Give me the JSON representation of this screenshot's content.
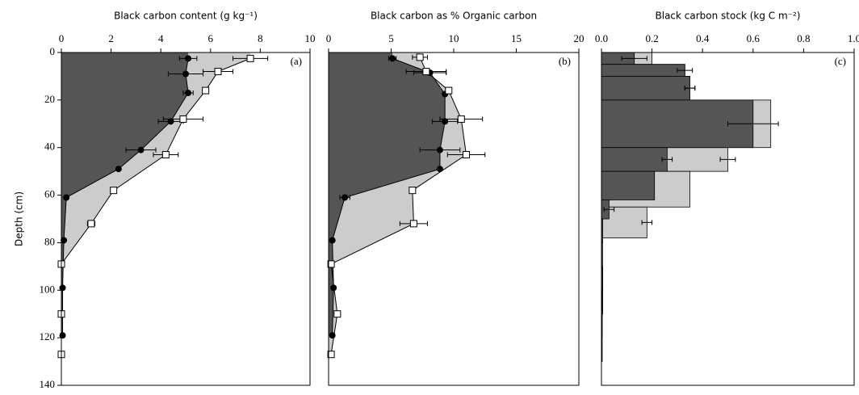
{
  "chart_data": [
    {
      "type": "area",
      "title": "Black carbon content (g kg⁻¹)",
      "panel_label": "(a)",
      "ylabel": "Depth (cm)",
      "xlim": [
        0,
        10
      ],
      "xticks": [
        0,
        2,
        4,
        6,
        8,
        10
      ],
      "ylim": [
        0,
        140
      ],
      "y_inverted": true,
      "yticks": [
        0,
        20,
        40,
        60,
        80,
        100,
        120,
        140
      ],
      "series": [
        {
          "color": "#555555",
          "marker": "circle",
          "values": [
            5.1,
            5.0,
            5.1,
            4.4,
            3.2,
            2.3,
            0.2,
            0.1,
            0.05,
            0.05
          ],
          "depth": [
            2.5,
            9,
            17,
            29,
            41,
            49,
            61,
            79,
            99,
            119
          ],
          "errors": [
            0.35,
            0.7,
            0.2,
            0.5,
            0.6,
            null,
            null,
            null,
            null,
            null
          ]
        },
        {
          "color": "#cccccc",
          "marker": "square",
          "values": [
            7.6,
            6.3,
            5.8,
            4.9,
            4.2,
            2.1,
            1.2,
            0,
            0,
            0
          ],
          "depth": [
            2.5,
            8,
            16,
            28,
            43,
            58,
            72,
            89,
            110,
            127
          ],
          "errors": [
            0.7,
            0.6,
            0.1,
            0.8,
            0.5,
            null,
            0.15,
            null,
            null,
            null
          ]
        }
      ]
    },
    {
      "type": "area",
      "title": "Black carbon as % Organic carbon",
      "panel_label": "(b)",
      "xlim": [
        0,
        20
      ],
      "xticks": [
        0,
        5,
        10,
        15,
        20
      ],
      "ylim": [
        0,
        140
      ],
      "y_inverted": true,
      "series": [
        {
          "color": "#555555",
          "marker": "circle",
          "values": [
            5.1,
            8.1,
            9.3,
            9.3,
            8.9,
            8.9,
            1.3,
            0.3,
            0.4,
            0.3
          ],
          "depth": [
            2.5,
            8.5,
            17.5,
            29,
            41,
            49,
            61,
            79,
            99,
            119
          ],
          "errors": [
            0.3,
            1.3,
            null,
            1.0,
            1.6,
            null,
            0.4,
            null,
            null,
            null
          ]
        },
        {
          "color": "#cccccc",
          "marker": "square",
          "values": [
            7.3,
            7.8,
            9.6,
            10.6,
            11,
            6.7,
            6.8,
            0.2,
            0.7,
            0.2
          ],
          "depth": [
            2,
            8,
            16,
            28,
            43,
            58,
            72,
            89,
            110,
            127
          ],
          "errors": [
            0.6,
            1.6,
            null,
            1.7,
            1.5,
            0.2,
            1.1,
            null,
            null,
            null
          ]
        }
      ]
    },
    {
      "type": "bar",
      "title": "Black carbon stock (kg C m⁻²)",
      "panel_label": "(c)",
      "xlim": [
        0,
        1
      ],
      "xticks": [
        {
          "value": 0,
          "label": "0.0"
        },
        0.2,
        0.4,
        0.6,
        0.8,
        {
          "value": 1,
          "label": "1.0"
        }
      ],
      "ylim": [
        0,
        140
      ],
      "y_inverted": true,
      "series": [
        {
          "color": "#555555",
          "edges": [
            0,
            5,
            10,
            20,
            40,
            50,
            62,
            70,
            80,
            100,
            120
          ],
          "values": [
            0.13,
            0.33,
            0.35,
            0.6,
            0.26,
            0.21,
            0.03,
            0.005,
            0.004,
            0.003
          ],
          "errors": [
            0.05,
            0.03,
            0.02,
            0.1,
            0.02,
            null,
            0.02,
            null,
            null,
            null
          ]
        },
        {
          "color": "#cccccc",
          "edges": [
            0,
            5,
            10,
            20,
            40,
            50,
            65,
            78,
            90,
            110,
            130
          ],
          "values": [
            0.2,
            0.33,
            0.35,
            0.67,
            0.5,
            0.35,
            0.18,
            0.004,
            0.005,
            0.003
          ],
          "errors": [
            null,
            null,
            0.02,
            null,
            0.03,
            null,
            0.02,
            null,
            null,
            null
          ]
        }
      ]
    }
  ]
}
